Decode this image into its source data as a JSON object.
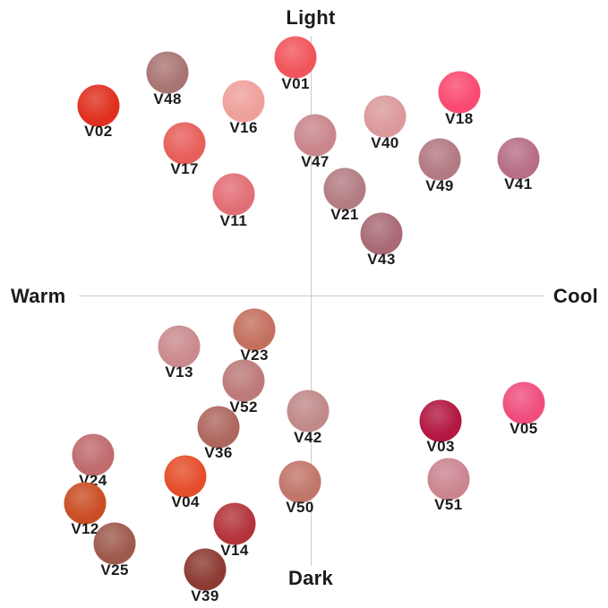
{
  "style": {
    "background": "#ffffff",
    "axis_line_color": "#cccccc",
    "text_color": "#1b1b1b"
  },
  "chart_data": {
    "type": "scatter",
    "title": "",
    "grid": false,
    "legend": false,
    "axes": {
      "vertical": {
        "top_label": "Light",
        "bottom_label": "Dark"
      },
      "horizontal": {
        "left_label": "Warm",
        "right_label": "Cool"
      }
    },
    "x_range": [
      -1,
      1
    ],
    "y_range": [
      -1,
      1
    ],
    "x_meaning": "warm (negative) to cool (positive)",
    "y_meaning": "dark (negative) to light (positive)",
    "points": [
      {
        "id": "V01",
        "color": "#f1555c",
        "warm_cool": -0.065,
        "light_dark": 0.911
      },
      {
        "id": "V48",
        "color": "#a97573",
        "warm_cool": -0.615,
        "light_dark": 0.853
      },
      {
        "id": "V02",
        "color": "#e0301f",
        "warm_cool": -0.912,
        "light_dark": 0.727
      },
      {
        "id": "V16",
        "color": "#efa09b",
        "warm_cool": -0.288,
        "light_dark": 0.744
      },
      {
        "id": "V18",
        "color": "#fa4a71",
        "warm_cool": 0.638,
        "light_dark": 0.778
      },
      {
        "id": "V40",
        "color": "#db999c",
        "warm_cool": 0.319,
        "light_dark": 0.686
      },
      {
        "id": "V17",
        "color": "#e75f5b",
        "warm_cool": -0.542,
        "light_dark": 0.584
      },
      {
        "id": "V47",
        "color": "#c9868c",
        "warm_cool": 0.019,
        "light_dark": 0.614
      },
      {
        "id": "V49",
        "color": "#b37983",
        "warm_cool": 0.554,
        "light_dark": 0.522
      },
      {
        "id": "V41",
        "color": "#b76e86",
        "warm_cool": 0.892,
        "light_dark": 0.526
      },
      {
        "id": "V11",
        "color": "#e26e75",
        "warm_cool": -0.331,
        "light_dark": 0.389
      },
      {
        "id": "V21",
        "color": "#b27d82",
        "warm_cool": 0.146,
        "light_dark": 0.41
      },
      {
        "id": "V43",
        "color": "#a96a75",
        "warm_cool": 0.304,
        "light_dark": 0.239
      },
      {
        "id": "V23",
        "color": "#c4705e",
        "warm_cool": -0.242,
        "light_dark": -0.126
      },
      {
        "id": "V13",
        "color": "#ca8a8e",
        "warm_cool": -0.565,
        "light_dark": -0.191
      },
      {
        "id": "V52",
        "color": "#bd7a79",
        "warm_cool": -0.288,
        "light_dark": -0.321
      },
      {
        "id": "V36",
        "color": "#ae675e",
        "warm_cool": -0.396,
        "light_dark": -0.498
      },
      {
        "id": "V42",
        "color": "#c08a8a",
        "warm_cool": -0.012,
        "light_dark": -0.437
      },
      {
        "id": "V24",
        "color": "#c06b6e",
        "warm_cool": -0.935,
        "light_dark": -0.604
      },
      {
        "id": "V04",
        "color": "#e54e2b",
        "warm_cool": -0.538,
        "light_dark": -0.686
      },
      {
        "id": "V03",
        "color": "#b21842",
        "warm_cool": 0.558,
        "light_dark": -0.474
      },
      {
        "id": "V05",
        "color": "#ef4e7d",
        "warm_cool": 0.915,
        "light_dark": -0.406
      },
      {
        "id": "V12",
        "color": "#ca4e24",
        "warm_cool": -0.969,
        "light_dark": -0.788
      },
      {
        "id": "V50",
        "color": "#c1766a",
        "warm_cool": -0.046,
        "light_dark": -0.706
      },
      {
        "id": "V51",
        "color": "#ca8590",
        "warm_cool": 0.592,
        "light_dark": -0.696
      },
      {
        "id": "V25",
        "color": "#9e5a4d",
        "warm_cool": -0.842,
        "light_dark": -0.942
      },
      {
        "id": "V14",
        "color": "#b4343c",
        "warm_cool": -0.327,
        "light_dark": -0.867
      },
      {
        "id": "V39",
        "color": "#8c3b33",
        "warm_cool": -0.454,
        "light_dark": -1.041
      }
    ]
  }
}
